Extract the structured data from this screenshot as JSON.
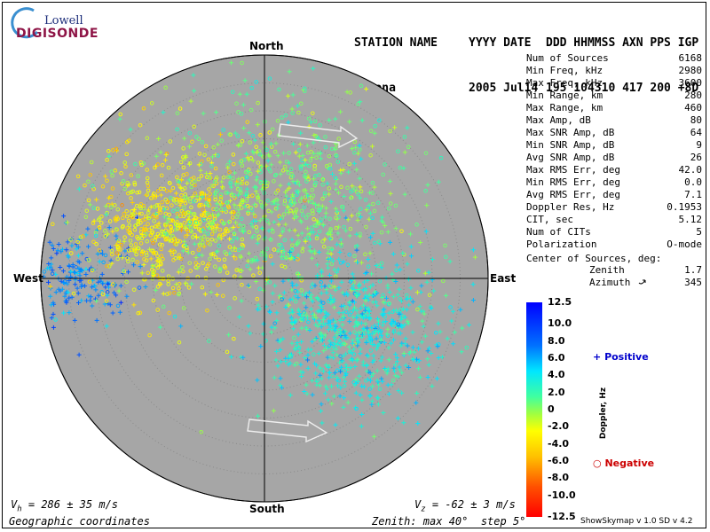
{
  "logo": {
    "top": "Lowell",
    "bottom": "DIGISONDE"
  },
  "header": {
    "labels": [
      "STATION NAME",
      "YYYY DATE",
      "DDD HHMMSS AXN PPS IGP"
    ],
    "values": [
      "Gakona",
      "2005 Jul14",
      "195 104310 417 200 +8D"
    ]
  },
  "stats": [
    {
      "label": "Num of Sources",
      "value": "6168"
    },
    {
      "label": "Min Freq, kHz",
      "value": "2980"
    },
    {
      "label": "Max Freq, kHz",
      "value": "3600"
    },
    {
      "label": "Min Range, km",
      "value": "280"
    },
    {
      "label": "Max Range, km",
      "value": "460"
    },
    {
      "label": "Max Amp, dB",
      "value": "80"
    },
    {
      "label": "Max SNR Amp, dB",
      "value": "64"
    },
    {
      "label": "Min SNR Amp, dB",
      "value": "9"
    },
    {
      "label": "Avg SNR Amp, dB",
      "value": "26"
    },
    {
      "label": "Max RMS Err, deg",
      "value": "42.0"
    },
    {
      "label": "Min RMS Err, deg",
      "value": "0.0"
    },
    {
      "label": "Avg RMS Err, deg",
      "value": "7.1"
    },
    {
      "label": "Doppler Res, Hz",
      "value": "0.1953"
    },
    {
      "label": "CIT, sec",
      "value": "5.12"
    },
    {
      "label": "Num of CITs",
      "value": "5"
    },
    {
      "label": "Polarization",
      "value": "O-mode"
    }
  ],
  "center": {
    "label": "Center of Sources, deg:",
    "zenith_label": "Zenith",
    "zenith_value": "1.7",
    "azimuth_label": "Azimuth",
    "azimuth_value": "345"
  },
  "directions": {
    "north": "North",
    "south": "South",
    "east": "East",
    "west": "West"
  },
  "colorbar": {
    "title": "Doppler, Hz",
    "ticks": [
      "12.5",
      "10.0",
      "8.0",
      "6.0",
      "4.0",
      "2.0",
      "0",
      "-2.0",
      "-4.0",
      "-6.0",
      "-8.0",
      "-10.0",
      "-12.5"
    ],
    "values": [
      12.5,
      10,
      8,
      6,
      4,
      2,
      0,
      -2,
      -4,
      -6,
      -8,
      -10,
      -12.5
    ]
  },
  "legend": {
    "positive": "Positive",
    "negative": "Negative",
    "positive_color": "#0000cc",
    "negative_color": "#cc0000"
  },
  "bottom": {
    "vh": "V",
    "vh_sub": "h",
    "vh_value": " = 286 ± 35 m/s",
    "vz": "V",
    "vz_sub": "z",
    "vz_value": " = -62 ± 3 m/s",
    "coords": "Geographic coordinates",
    "zenith": "Zenith: max 40°  step 5°"
  },
  "credit": "ShowSkymap v 1.0   SD v 4.2",
  "chart_data": {
    "type": "scatter",
    "projection": "polar-skymap",
    "zenith_max_deg": 40,
    "zenith_step_deg": 5,
    "background": "#a6a6a6",
    "num_points_drawn": 2600,
    "clusters": [
      {
        "name": "west-blue",
        "azimuth_deg": 270,
        "zenith_deg": 34,
        "spread_deg": 5,
        "doppler_hz": 7,
        "marker": "plus",
        "weight": 0.08
      },
      {
        "name": "northwest-yellow",
        "azimuth_deg": 300,
        "zenith_deg": 20,
        "spread_deg": 8,
        "doppler_hz": -3,
        "marker": "circle",
        "weight": 0.27
      },
      {
        "name": "north-green",
        "azimuth_deg": 15,
        "zenith_deg": 14,
        "spread_deg": 9,
        "doppler_hz": 0.5,
        "marker": "mixed",
        "weight": 0.25
      },
      {
        "name": "southeast-cyan",
        "azimuth_deg": 120,
        "zenith_deg": 18,
        "spread_deg": 8,
        "doppler_hz": 3.5,
        "marker": "plus",
        "weight": 0.3
      },
      {
        "name": "sparse",
        "azimuth_deg": 0,
        "zenith_deg": 20,
        "spread_deg": 20,
        "doppler_hz": 1,
        "marker": "mixed",
        "weight": 0.1
      }
    ]
  }
}
